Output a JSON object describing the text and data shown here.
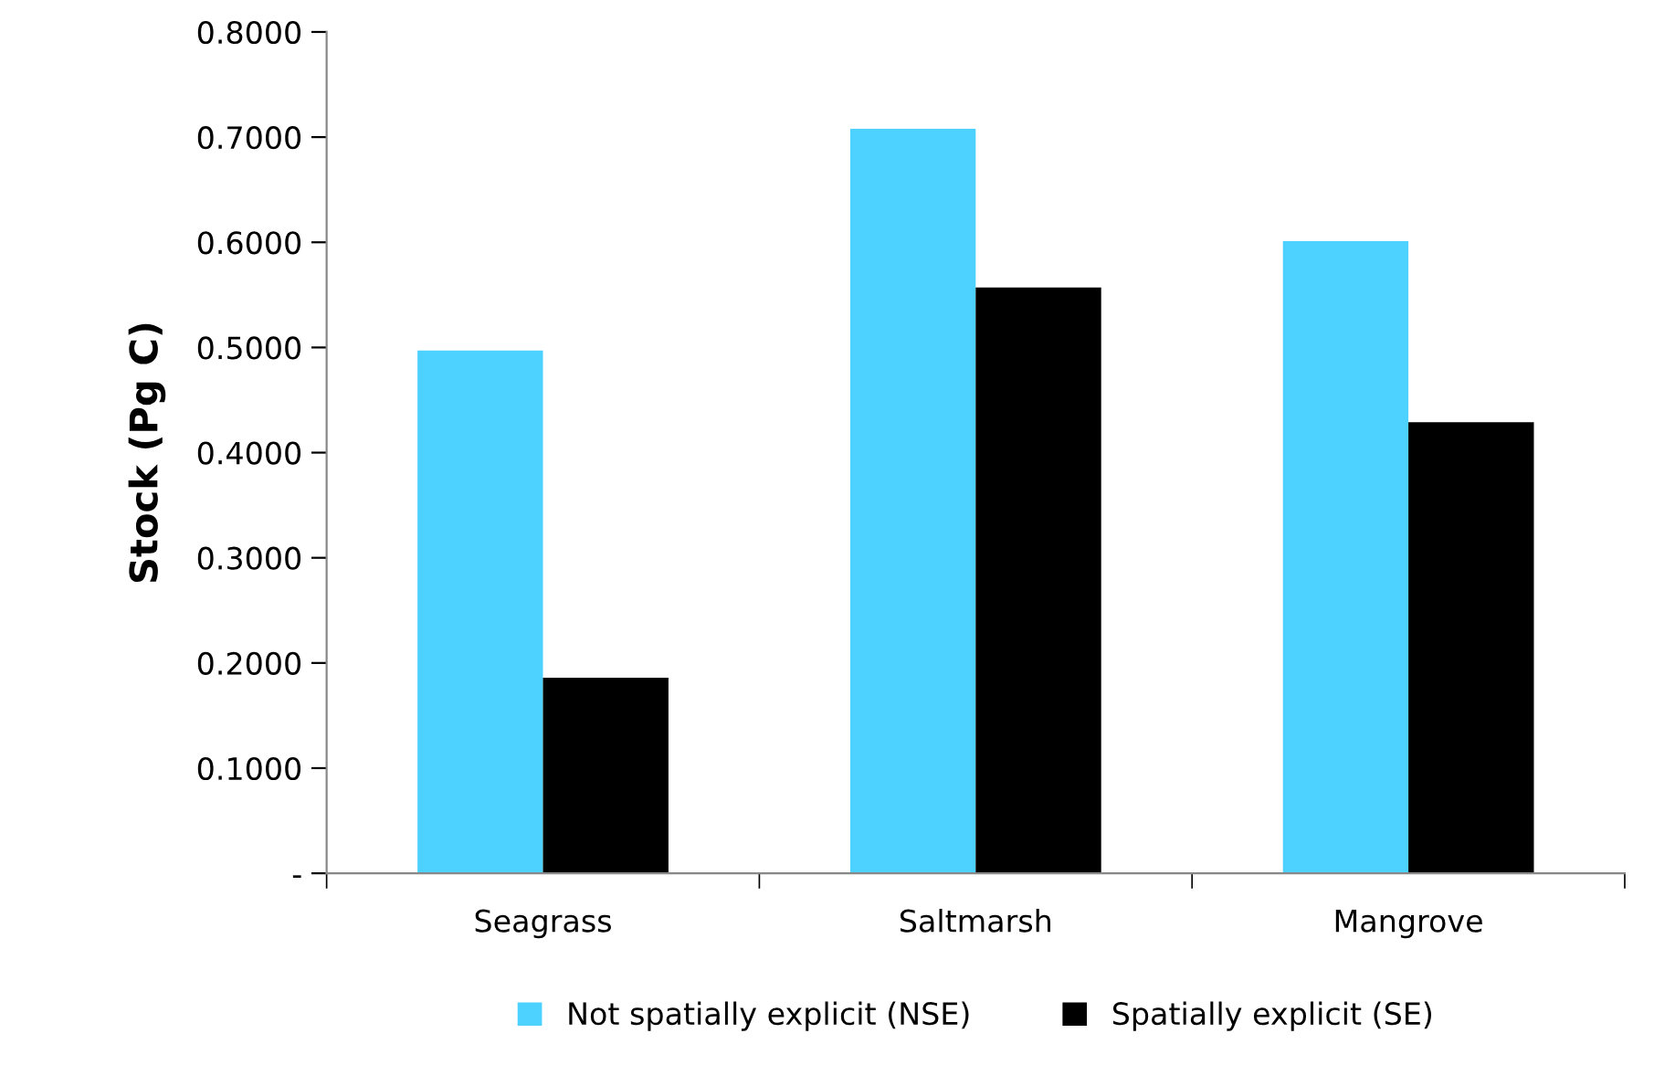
{
  "chart_data": {
    "type": "bar",
    "ylabel": "Stock (Pg C)",
    "categories": [
      "Seagrass",
      "Saltmarsh",
      "Mangrove"
    ],
    "series": [
      {
        "name": "Not spatially explicit (NSE)",
        "color": "#4dd2ff",
        "values": [
          0.497,
          0.708,
          0.601
        ]
      },
      {
        "name": "Spatially explicit (SE)",
        "color": "#000000",
        "values": [
          0.186,
          0.557,
          0.429
        ]
      }
    ],
    "ylim": [
      0,
      0.8
    ],
    "yticks": [
      {
        "value": 0,
        "label": "-"
      },
      {
        "value": 0.1,
        "label": "0.1000"
      },
      {
        "value": 0.2,
        "label": "0.2000"
      },
      {
        "value": 0.3,
        "label": "0.3000"
      },
      {
        "value": 0.4,
        "label": "0.4000"
      },
      {
        "value": 0.5,
        "label": "0.5000"
      },
      {
        "value": 0.6,
        "label": "0.6000"
      },
      {
        "value": 0.7,
        "label": "0.7000"
      },
      {
        "value": 0.8,
        "label": "0.8000"
      }
    ],
    "grid": false,
    "legend": "bottom"
  }
}
